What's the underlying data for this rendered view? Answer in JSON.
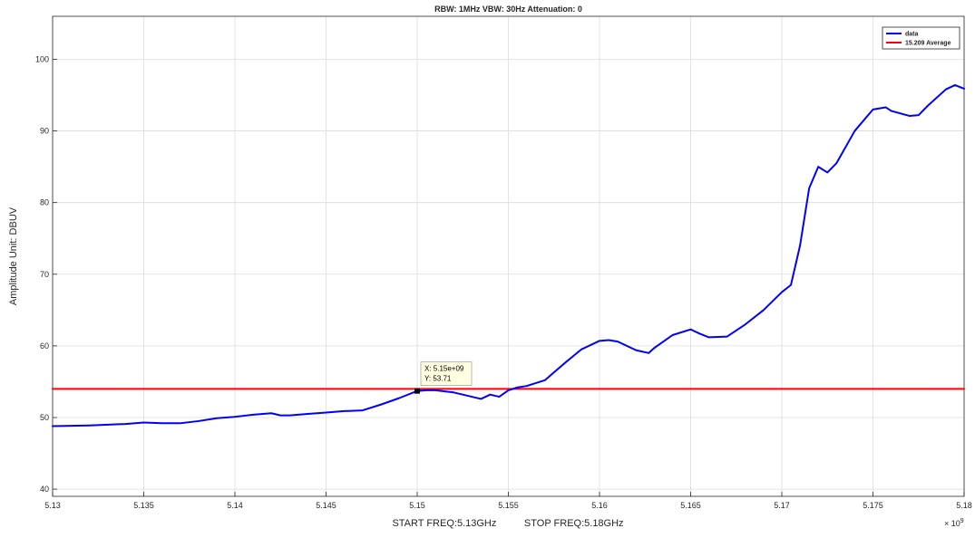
{
  "chart_data": {
    "type": "line",
    "title": "RBW: 1MHz   VBW: 30Hz  Attenuation: 0",
    "xlabel": "START FREQ:5.13GHz          STOP FREQ:5.18GHz",
    "ylabel": "Amplitude Unit: DBUV",
    "x_exponent_label": "× 10",
    "x_exponent_power": "9",
    "xlim": [
      5.13,
      5.18
    ],
    "ylim": [
      39,
      106
    ],
    "x_ticks": [
      5.13,
      5.135,
      5.14,
      5.145,
      5.15,
      5.155,
      5.16,
      5.165,
      5.17,
      5.175,
      5.18
    ],
    "x_tick_labels": [
      "5.13",
      "5.135",
      "5.14",
      "5.145",
      "5.15",
      "5.155",
      "5.16",
      "5.165",
      "5.17",
      "5.175",
      "5.18"
    ],
    "y_ticks": [
      40,
      50,
      60,
      70,
      80,
      90,
      100
    ],
    "y_tick_labels": [
      "40",
      "50",
      "60",
      "70",
      "80",
      "90",
      "100"
    ],
    "grid": true,
    "legend_position": "top-right",
    "series": [
      {
        "name": "data",
        "color": "#0000ff",
        "x": [
          5.13,
          5.132,
          5.134,
          5.135,
          5.136,
          5.137,
          5.138,
          5.139,
          5.14,
          5.141,
          5.142,
          5.1425,
          5.143,
          5.144,
          5.145,
          5.146,
          5.147,
          5.148,
          5.149,
          5.15,
          5.1505,
          5.151,
          5.152,
          5.153,
          5.1535,
          5.154,
          5.1545,
          5.155,
          5.1555,
          5.156,
          5.157,
          5.158,
          5.159,
          5.16,
          5.1605,
          5.161,
          5.162,
          5.1627,
          5.163,
          5.164,
          5.165,
          5.1655,
          5.166,
          5.167,
          5.168,
          5.169,
          5.17,
          5.1705,
          5.171,
          5.1715,
          5.172,
          5.1725,
          5.173,
          5.174,
          5.175,
          5.1757,
          5.176,
          5.177,
          5.1775,
          5.178,
          5.179,
          5.1795,
          5.18
        ],
        "y": [
          48.8,
          48.9,
          49.1,
          49.3,
          49.2,
          49.2,
          49.5,
          49.9,
          50.1,
          50.4,
          50.6,
          50.3,
          50.3,
          50.5,
          50.7,
          50.9,
          51.0,
          51.8,
          52.7,
          53.7,
          53.8,
          53.8,
          53.5,
          52.9,
          52.6,
          53.2,
          52.9,
          53.8,
          54.2,
          54.4,
          55.2,
          57.4,
          59.5,
          60.7,
          60.8,
          60.6,
          59.4,
          59.0,
          59.7,
          61.5,
          62.3,
          61.7,
          61.2,
          61.3,
          63.0,
          65.0,
          67.5,
          68.5,
          74.0,
          82.0,
          85.0,
          84.2,
          85.5,
          90.0,
          93.0,
          93.3,
          92.8,
          92.1,
          92.2,
          93.5,
          95.8,
          96.4,
          95.9
        ]
      },
      {
        "name": "15.209 Average",
        "color": "#ff0000",
        "x": [
          5.13,
          5.18
        ],
        "y": [
          54.0,
          54.0
        ]
      }
    ],
    "datatip": {
      "x": 5.15,
      "y": 53.71,
      "label_x": "X: 5.15e+09",
      "label_y": "Y: 53.71"
    }
  }
}
